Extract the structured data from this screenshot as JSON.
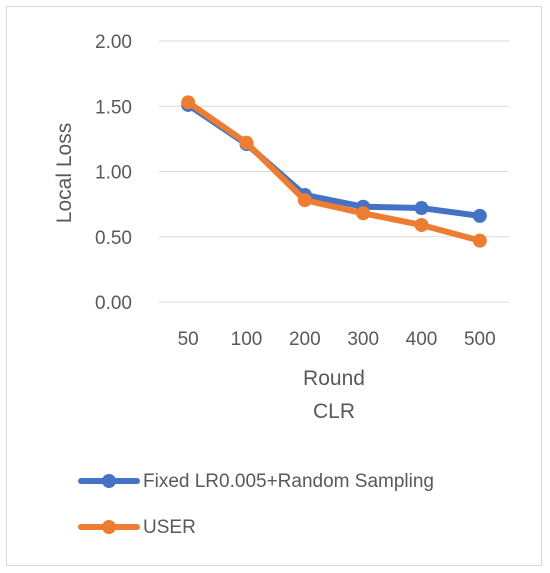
{
  "chart_data": {
    "type": "line",
    "categories": [
      "50",
      "100",
      "200",
      "300",
      "400",
      "500"
    ],
    "series": [
      {
        "name": "Fixed LR0.005+Random Sampling",
        "color": "#4472C4",
        "values": [
          1.51,
          1.21,
          0.82,
          0.73,
          0.72,
          0.66
        ]
      },
      {
        "name": "USER",
        "color": "#ED7D31",
        "values": [
          1.53,
          1.22,
          0.78,
          0.68,
          0.59,
          0.47
        ]
      }
    ],
    "xlabel": "Round",
    "subtitle": "CLR",
    "ylabel": "Local Loss",
    "ylim": [
      0,
      2
    ],
    "yticks": [
      "0.00",
      "0.50",
      "1.00",
      "1.50",
      "2.00"
    ],
    "grid": true,
    "legend_position": "bottom"
  }
}
